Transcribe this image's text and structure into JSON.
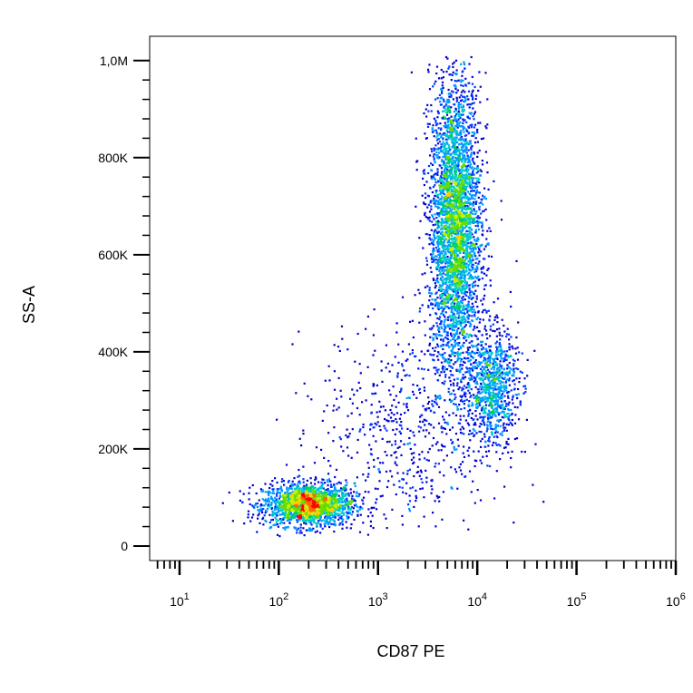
{
  "chart_data": {
    "type": "scatter",
    "title": "",
    "xlabel": "CD87 PE",
    "ylabel": "SS-A",
    "x_scale": "log",
    "x_range": [
      5,
      1000000
    ],
    "y_range": [
      -30000,
      1050000
    ],
    "x_ticks": [
      {
        "base": "10",
        "exp": "1",
        "value": 10
      },
      {
        "base": "10",
        "exp": "2",
        "value": 100
      },
      {
        "base": "10",
        "exp": "3",
        "value": 1000
      },
      {
        "base": "10",
        "exp": "4",
        "value": 10000
      },
      {
        "base": "10",
        "exp": "5",
        "value": 100000
      },
      {
        "base": "10",
        "exp": "6",
        "value": 1000000
      }
    ],
    "y_ticks": [
      {
        "label": "0",
        "value": 0
      },
      {
        "label": "200K",
        "value": 200000
      },
      {
        "label": "400K",
        "value": 400000
      },
      {
        "label": "600K",
        "value": 600000
      },
      {
        "label": "800K",
        "value": 800000
      },
      {
        "label": "1,0M",
        "value": 1000000
      }
    ],
    "populations": [
      {
        "center_x": 200,
        "center_y": 85000,
        "spread_logx": 0.23,
        "spread_y": 22000,
        "count": 1800
      },
      {
        "center_x": 6000,
        "center_y": 660000,
        "spread_logx": 0.13,
        "spread_y": 150000,
        "count": 3600
      },
      {
        "center_x": 14000,
        "center_y": 330000,
        "spread_logx": 0.13,
        "spread_y": 60000,
        "count": 900
      },
      {
        "center_x": 2000,
        "center_y": 240000,
        "spread_logx": 0.45,
        "spread_y": 110000,
        "count": 600
      }
    ],
    "colormap": [
      "#0000cc",
      "#0033ff",
      "#0099ff",
      "#00cccc",
      "#00cc66",
      "#66dd00",
      "#ccee00",
      "#ffcc00",
      "#ff6600",
      "#ff0000"
    ],
    "grid": false,
    "legend": "none"
  }
}
